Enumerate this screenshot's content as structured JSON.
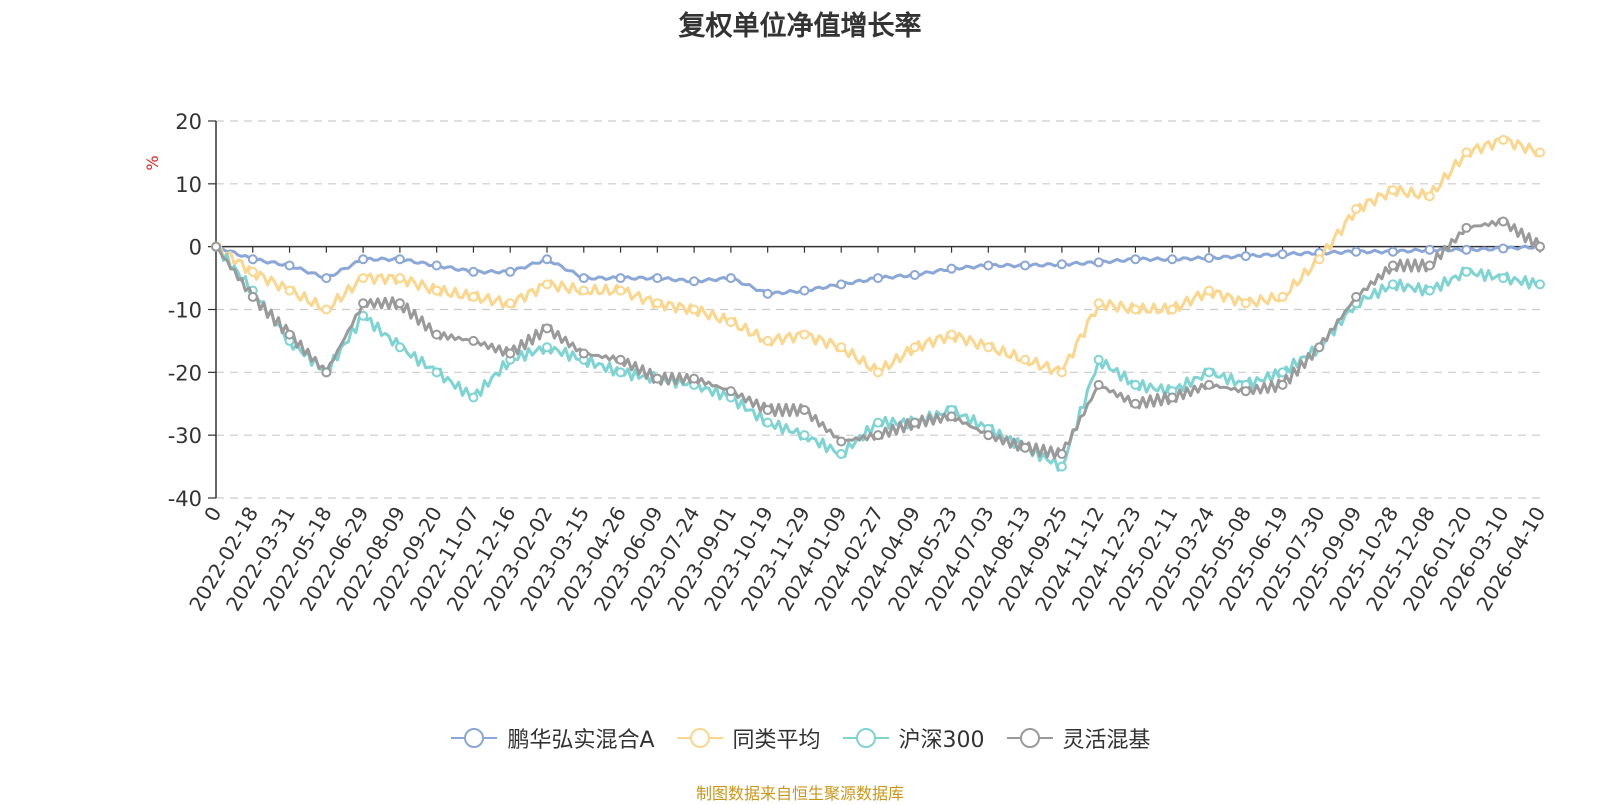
{
  "chart_data": {
    "type": "line",
    "title": "复权单位净值增长率",
    "ylabel": "%",
    "ylim": [
      -40,
      20
    ],
    "yticks": [
      20,
      10,
      0,
      -10,
      -20,
      -30,
      -40
    ],
    "categories": [
      "0",
      "2022-02-18",
      "2022-03-31",
      "2022-05-18",
      "2022-06-29",
      "2022-08-09",
      "2022-09-20",
      "2022-11-07",
      "2022-12-16",
      "2023-02-02",
      "2023-03-15",
      "2023-04-26",
      "2023-06-09",
      "2023-07-24",
      "2023-09-01",
      "2023-10-19",
      "2023-11-29",
      "2024-01-09",
      "2024-02-27",
      "2024-04-09",
      "2024-05-23",
      "2024-07-03",
      "2024-08-13",
      "2024-09-25",
      "2024-11-12",
      "2024-12-23",
      "2025-02-11",
      "2025-03-24",
      "2025-05-08",
      "2025-06-19",
      "2025-07-30",
      "2025-09-09",
      "2025-10-28",
      "2025-12-08",
      "2026-01-20",
      "2026-03-10",
      "2026-04-10"
    ],
    "series": [
      {
        "name": "鹏华弘实混合A",
        "color": "#8aa7d8",
        "values": [
          0,
          -2,
          -3,
          -5,
          -2,
          -2,
          -3,
          -4,
          -4,
          -2,
          -5,
          -5,
          -5,
          -5.5,
          -5,
          -7.5,
          -7,
          -6,
          -5,
          -4.5,
          -3.5,
          -3,
          -3,
          -2.8,
          -2.5,
          -2,
          -2,
          -1.8,
          -1.5,
          -1.2,
          -1,
          -0.8,
          -0.8,
          -0.5,
          -0.5,
          -0.3,
          0
        ]
      },
      {
        "name": "同类平均",
        "color": "#fbd68c",
        "values": [
          0,
          -4,
          -7,
          -10,
          -5,
          -5,
          -7,
          -8,
          -9,
          -6,
          -7,
          -7,
          -9,
          -10,
          -12,
          -15,
          -14,
          -16,
          -20,
          -16,
          -14,
          -16,
          -18,
          -20,
          -9,
          -10,
          -10,
          -7,
          -9,
          -8,
          -2,
          6,
          9,
          8,
          15,
          17,
          15
        ]
      },
      {
        "name": "沪深300",
        "color": "#7ed3d3",
        "values": [
          0,
          -7,
          -15,
          -20,
          -11,
          -16,
          -20,
          -24,
          -18,
          -16,
          -18,
          -20,
          -21,
          -22,
          -24,
          -28,
          -30,
          -33,
          -28,
          -28,
          -26,
          -29,
          -32,
          -35,
          -18,
          -22,
          -23,
          -20,
          -22,
          -20,
          -16,
          -9,
          -6,
          -7,
          -4,
          -5,
          -6
        ]
      },
      {
        "name": "灵活混基",
        "color": "#9a9a9a",
        "values": [
          0,
          -8,
          -14,
          -20,
          -9,
          -9,
          -14,
          -15,
          -17,
          -13,
          -17,
          -18,
          -21,
          -21,
          -23,
          -26,
          -26,
          -31,
          -30,
          -28,
          -27,
          -30,
          -32,
          -33,
          -22,
          -25,
          -24,
          -22,
          -23,
          -22,
          -16,
          -8,
          -3,
          -3,
          3,
          4,
          0
        ]
      }
    ]
  },
  "source": "制图数据来自恒生聚源数据库"
}
